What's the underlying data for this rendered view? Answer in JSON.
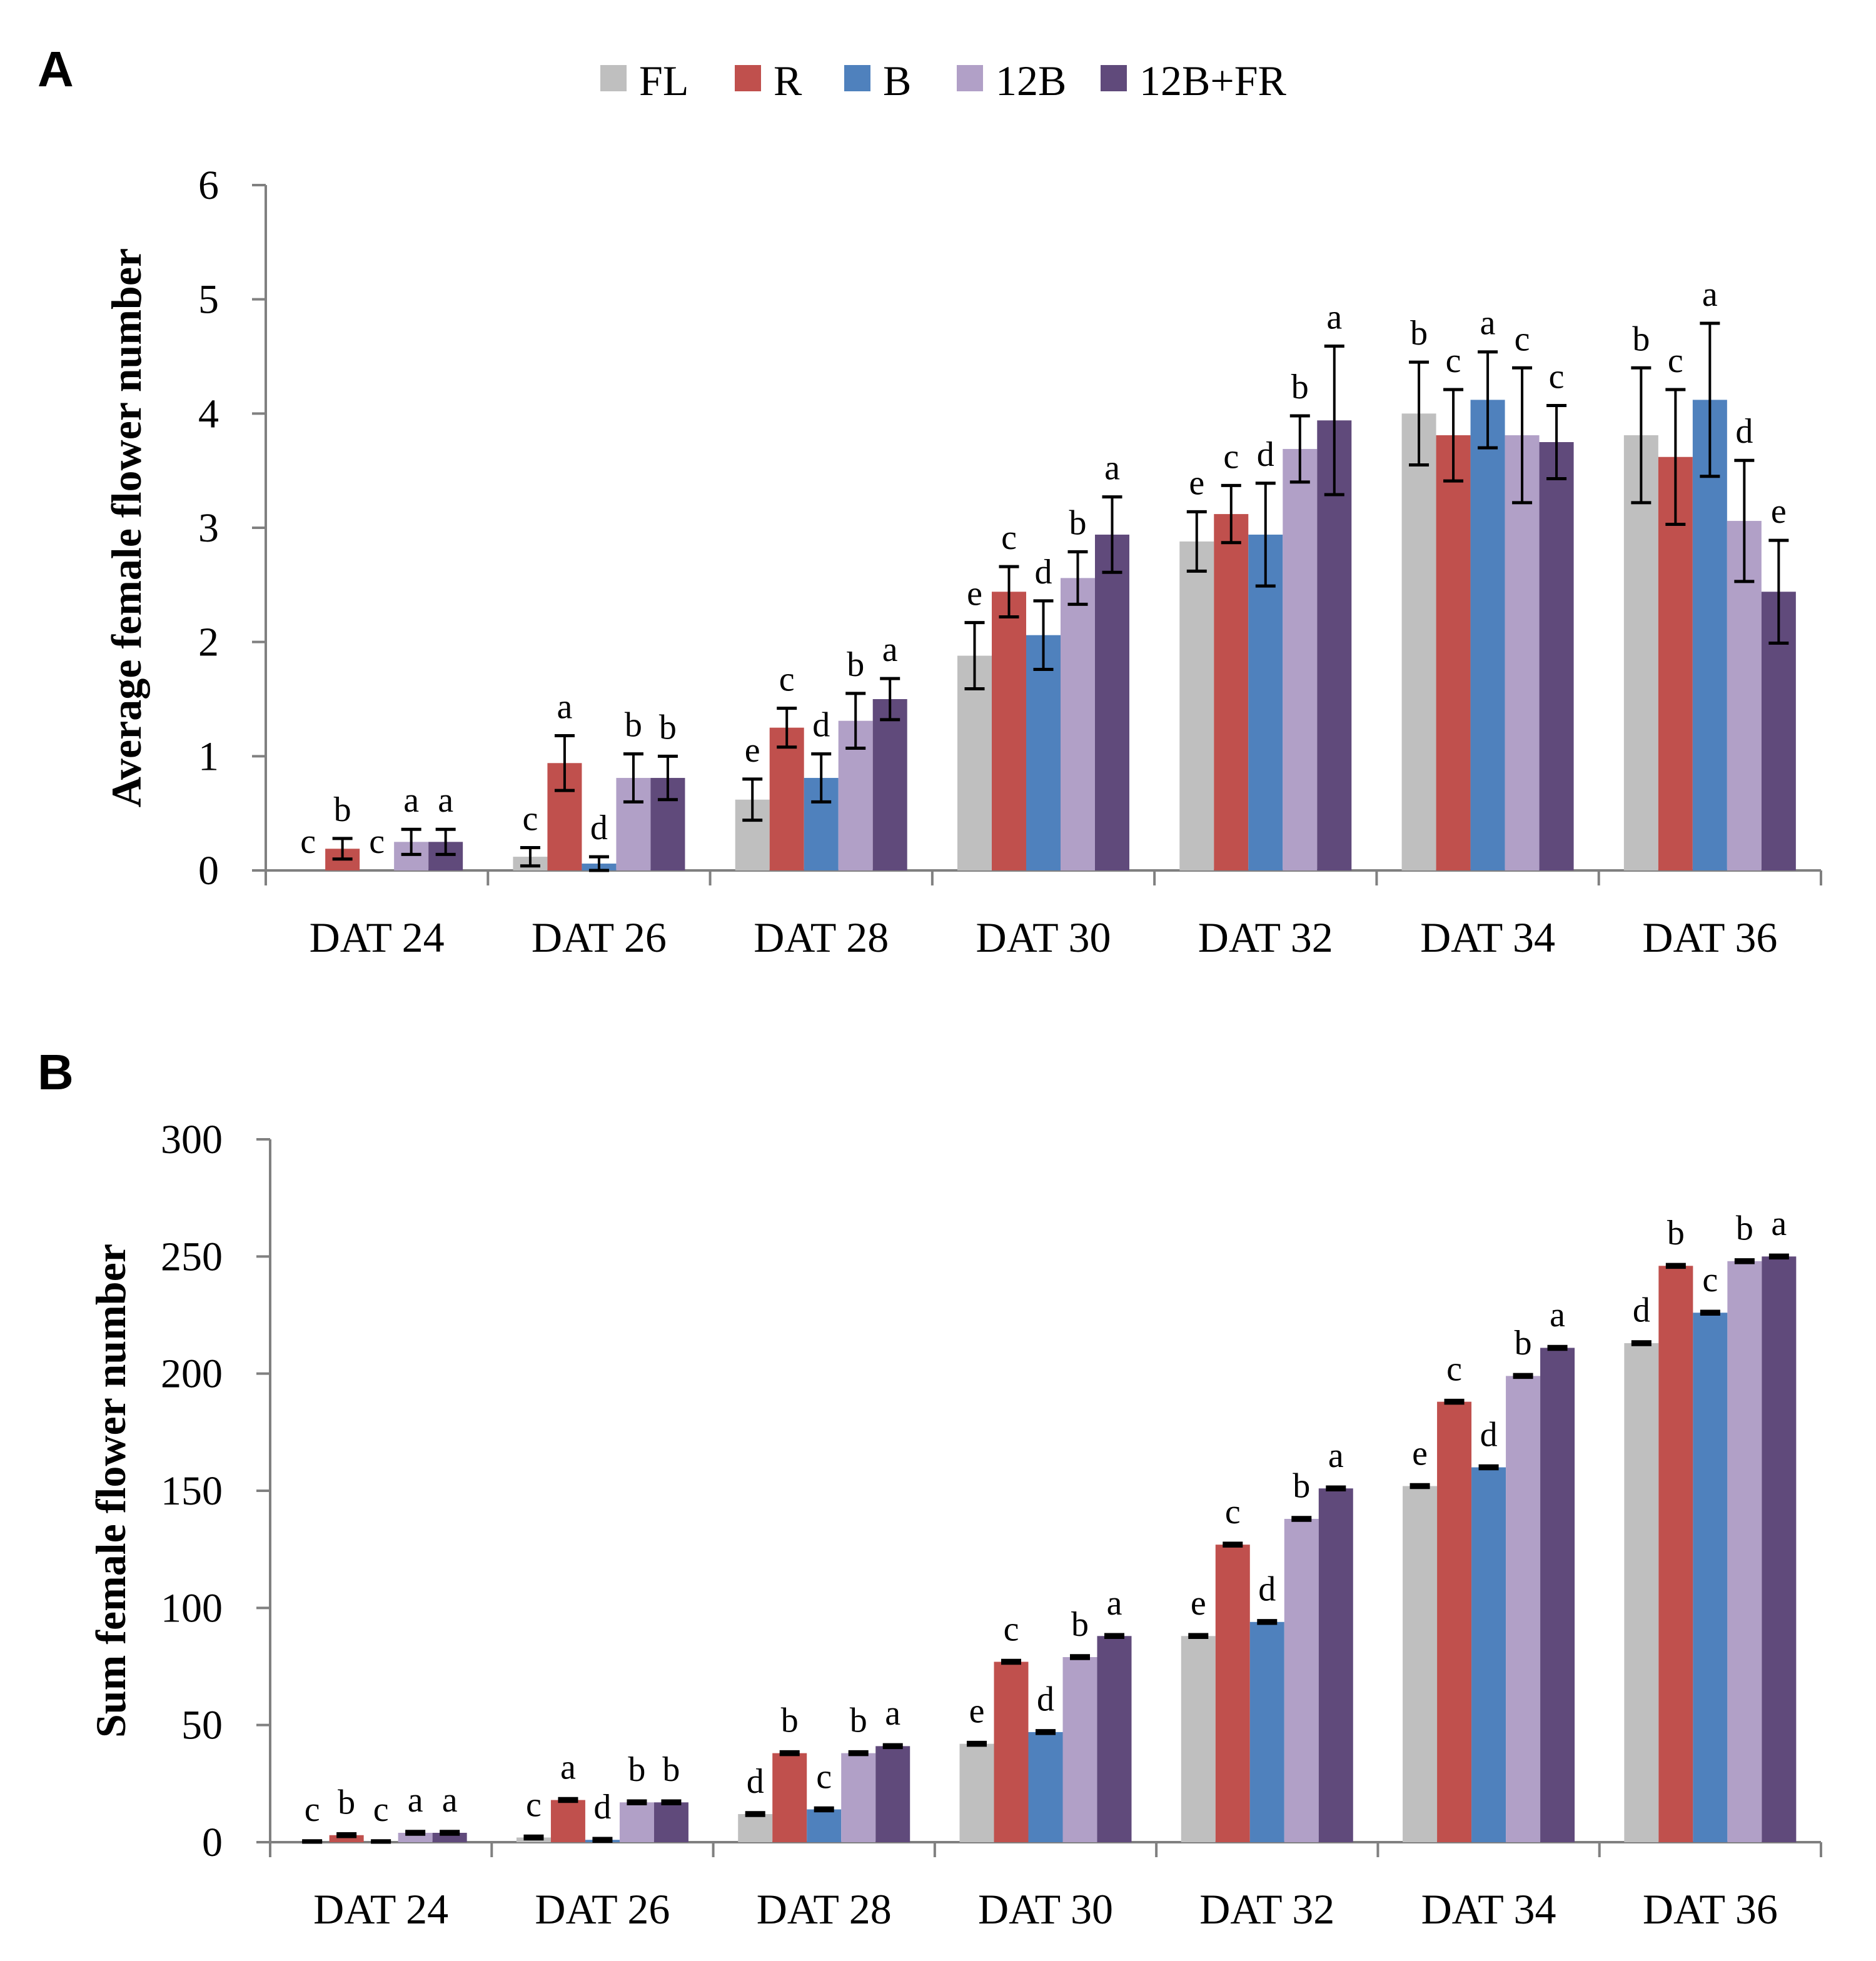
{
  "legend": {
    "series": [
      "FL",
      "R",
      "B",
      "12B",
      "12B+FR"
    ]
  },
  "colors": {
    "FL": "#bfbfbf",
    "R": "#c0504d",
    "B": "#4f81bd",
    "12B": "#b1a0c7",
    "12B+FR": "#604a7b"
  },
  "chart_data": [
    {
      "panel": "A",
      "type": "bar",
      "title": "",
      "xlabel": "",
      "ylabel": "Average female flower number",
      "ylim": [
        0,
        6
      ],
      "yticks": [
        "0",
        "1",
        "2",
        "3",
        "4",
        "5",
        "6"
      ],
      "categories": [
        "DAT 24",
        "DAT 26",
        "DAT 28",
        "DAT 30",
        "DAT 32",
        "DAT 34",
        "DAT 36"
      ],
      "series": [
        {
          "name": "FL",
          "values": [
            0,
            0.12,
            0.62,
            1.88,
            2.88,
            4.0,
            3.81
          ],
          "errors": [
            0,
            0.08,
            0.18,
            0.29,
            0.26,
            0.45,
            0.59
          ],
          "letters": [
            "c",
            "c",
            "e",
            "e",
            "e",
            "b",
            "b"
          ]
        },
        {
          "name": "R",
          "values": [
            0.19,
            0.94,
            1.25,
            2.44,
            3.12,
            3.81,
            3.62
          ],
          "errors": [
            0.09,
            0.24,
            0.17,
            0.22,
            0.25,
            0.4,
            0.59
          ],
          "letters": [
            "b",
            "a",
            "c",
            "c",
            "c",
            "c",
            "c"
          ]
        },
        {
          "name": "B",
          "values": [
            0,
            0.06,
            0.81,
            2.06,
            2.94,
            4.12,
            4.12
          ],
          "errors": [
            0,
            0.06,
            0.21,
            0.3,
            0.45,
            0.42,
            0.67
          ],
          "letters": [
            "c",
            "d",
            "d",
            "d",
            "d",
            "a",
            "a"
          ]
        },
        {
          "name": "12B",
          "values": [
            0.25,
            0.81,
            1.31,
            2.56,
            3.69,
            3.81,
            3.06
          ],
          "errors": [
            0.11,
            0.21,
            0.24,
            0.23,
            0.29,
            0.59,
            0.53
          ],
          "letters": [
            "a",
            "b",
            "b",
            "b",
            "b",
            "c",
            "d"
          ]
        },
        {
          "name": "12B+FR",
          "values": [
            0.25,
            0.81,
            1.5,
            2.94,
            3.94,
            3.75,
            2.44
          ],
          "errors": [
            0.11,
            0.19,
            0.18,
            0.33,
            0.65,
            0.32,
            0.45
          ],
          "letters": [
            "a",
            "b",
            "a",
            "a",
            "a",
            "c",
            "e"
          ]
        }
      ]
    },
    {
      "panel": "B",
      "type": "bar",
      "title": "",
      "xlabel": "",
      "ylabel": "Sum female flower number",
      "ylim": [
        0,
        300
      ],
      "yticks": [
        "0",
        "50",
        "100",
        "150",
        "200",
        "250",
        "300"
      ],
      "categories": [
        "DAT 24",
        "DAT 26",
        "DAT 28",
        "DAT 30",
        "DAT 32",
        "DAT 34",
        "DAT 36"
      ],
      "series": [
        {
          "name": "FL",
          "values": [
            0,
            2,
            12,
            42,
            88,
            152,
            213
          ],
          "errors": [
            0.6,
            0.6,
            0.6,
            0.6,
            0.6,
            0.6,
            0.6
          ],
          "letters": [
            "c",
            "c",
            "d",
            "e",
            "e",
            "e",
            "d"
          ]
        },
        {
          "name": "R",
          "values": [
            3,
            18,
            38,
            77,
            127,
            188,
            246
          ],
          "errors": [
            0.6,
            0.6,
            0.6,
            0.6,
            0.6,
            0.6,
            0.6
          ],
          "letters": [
            "b",
            "a",
            "b",
            "c",
            "c",
            "c",
            "b"
          ]
        },
        {
          "name": "B",
          "values": [
            0,
            1,
            14,
            47,
            94,
            160,
            226
          ],
          "errors": [
            0.6,
            0.6,
            0.6,
            0.6,
            0.6,
            0.6,
            0.6
          ],
          "letters": [
            "c",
            "d",
            "c",
            "d",
            "d",
            "d",
            "c"
          ]
        },
        {
          "name": "12B",
          "values": [
            4,
            17,
            38,
            79,
            138,
            199,
            248
          ],
          "errors": [
            0.6,
            0.6,
            0.6,
            0.6,
            0.6,
            0.6,
            0.6
          ],
          "letters": [
            "a",
            "b",
            "b",
            "b",
            "b",
            "b",
            "b"
          ]
        },
        {
          "name": "12B+FR",
          "values": [
            4,
            17,
            41,
            88,
            151,
            211,
            250
          ],
          "errors": [
            0.6,
            0.6,
            0.6,
            0.6,
            0.6,
            0.6,
            0.6
          ],
          "letters": [
            "a",
            "b",
            "a",
            "a",
            "a",
            "a",
            "a"
          ]
        }
      ]
    }
  ]
}
